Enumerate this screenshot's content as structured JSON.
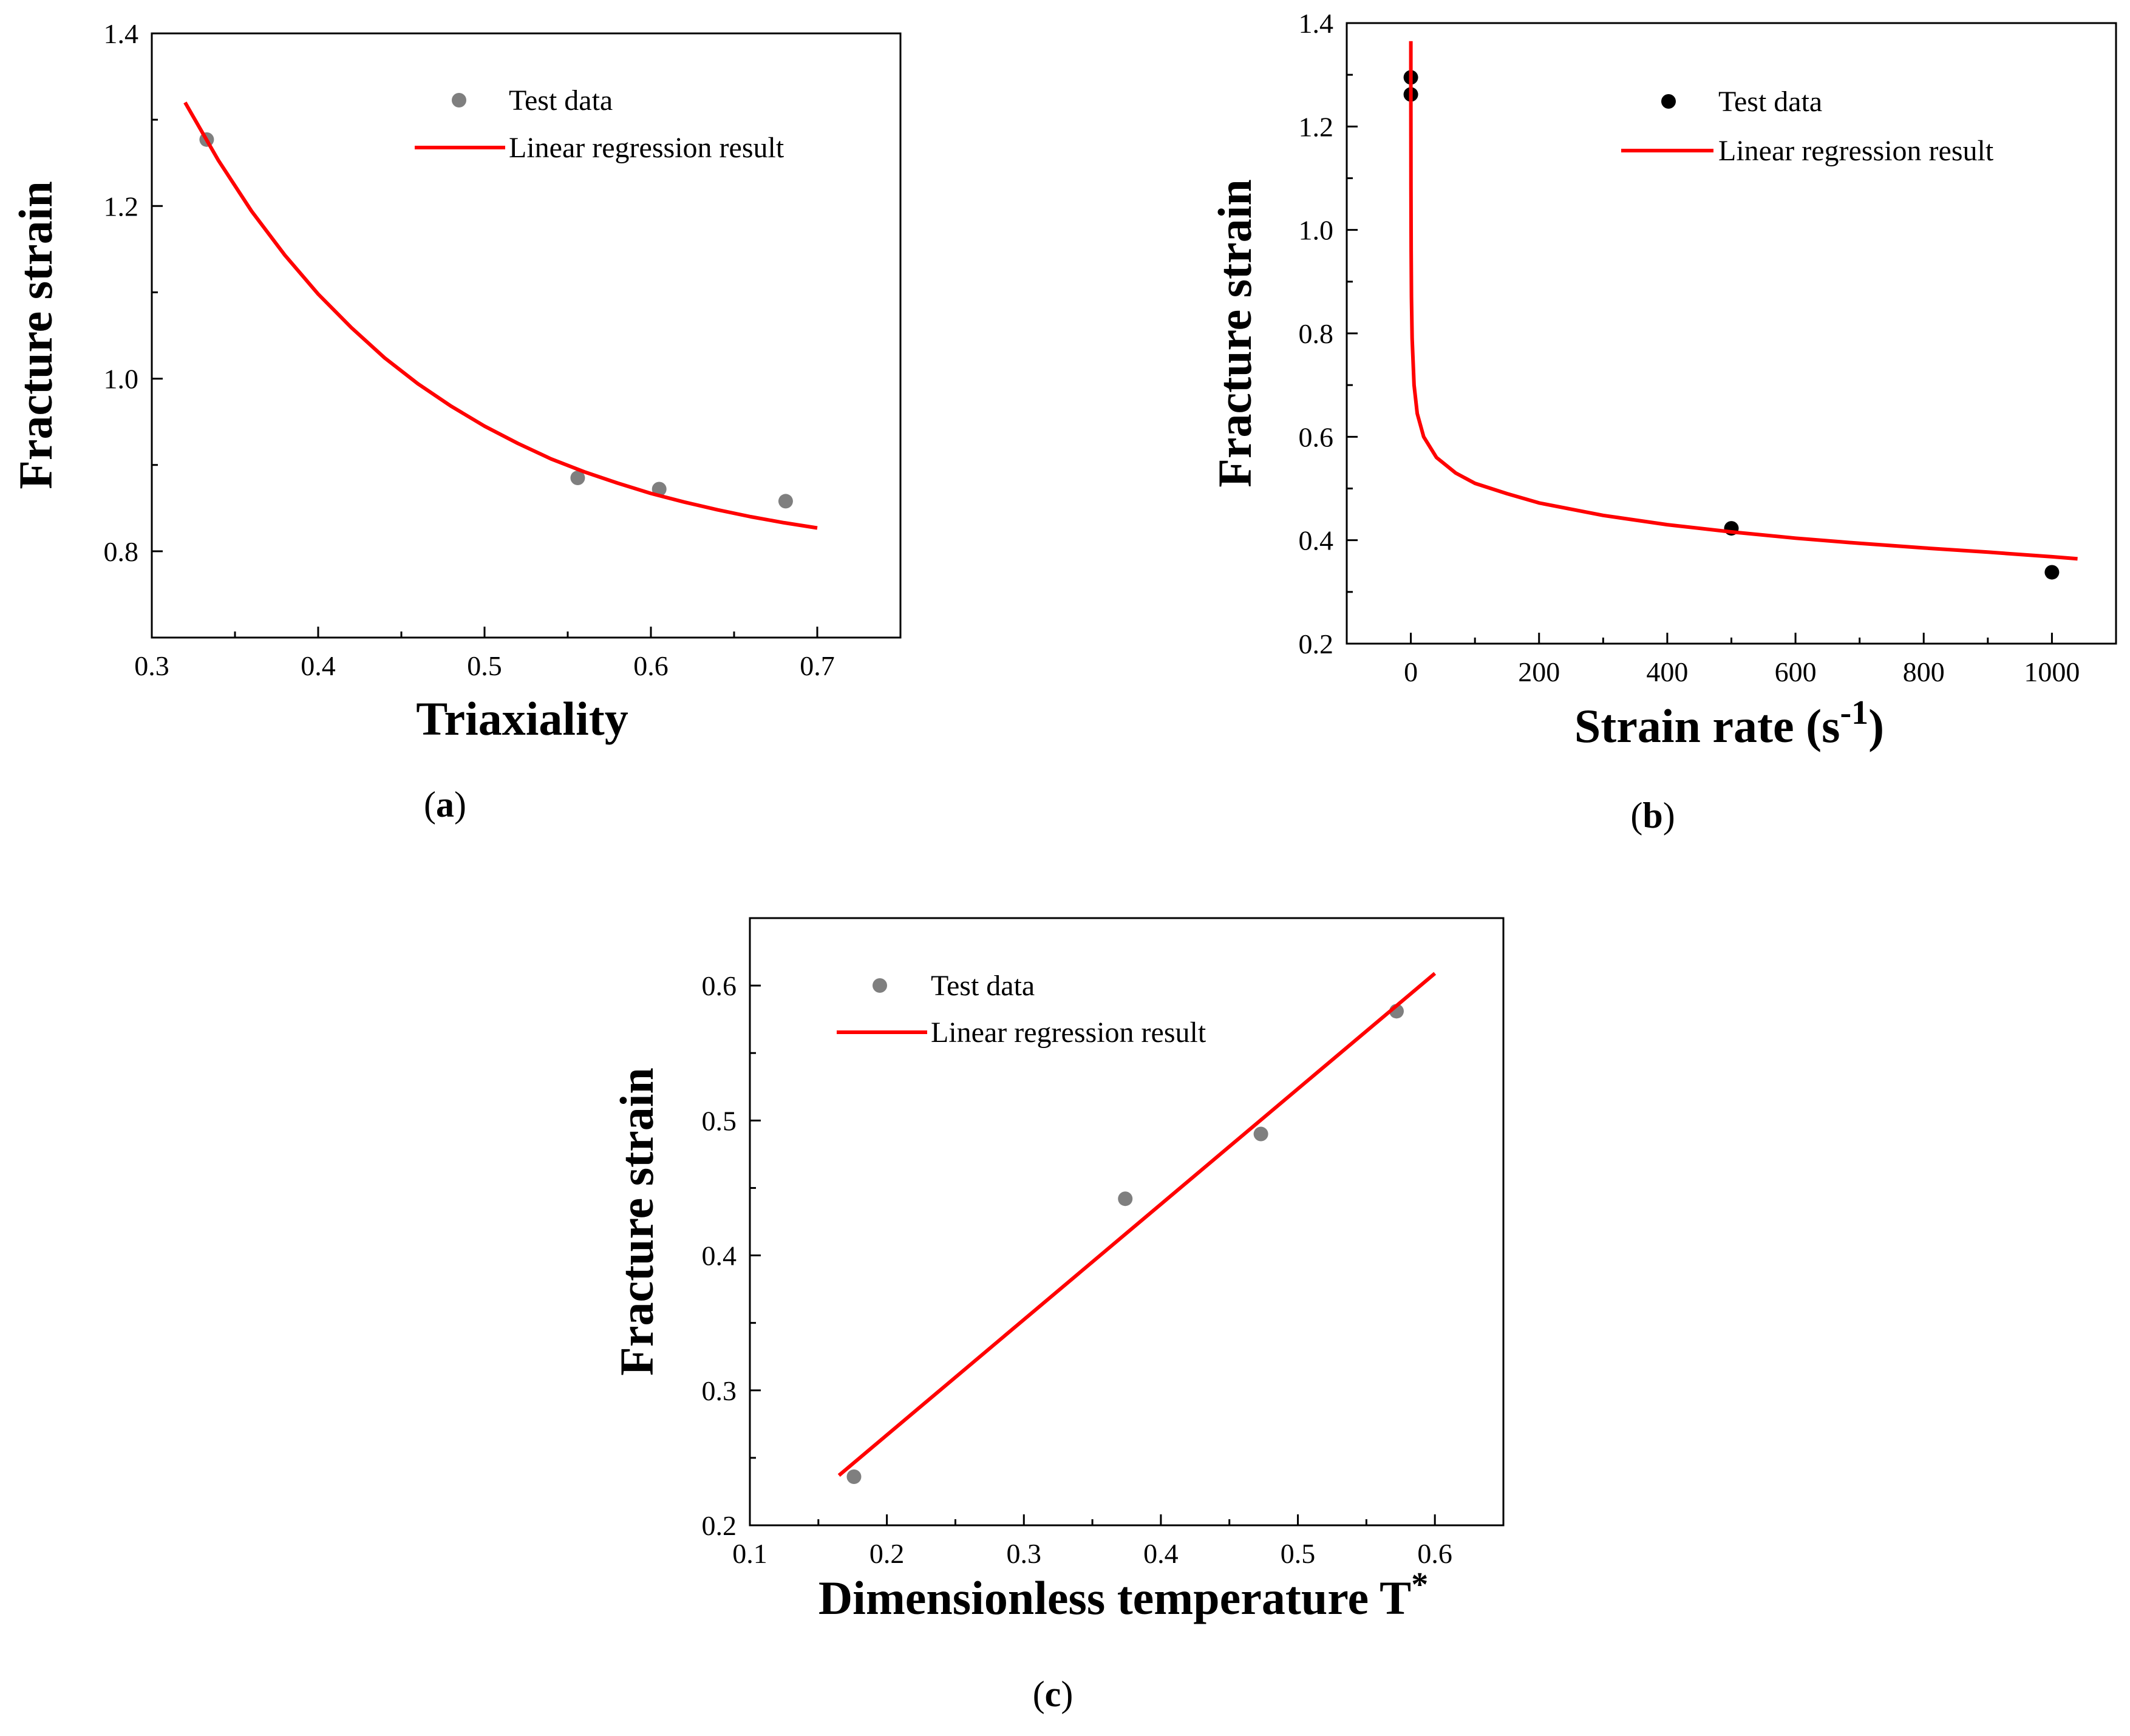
{
  "chart_data": [
    {
      "panel": "a",
      "caption": "(a)",
      "caption_letter": "a",
      "type": "scatter",
      "xlabel": "Triaxiality",
      "ylabel": "Fracture strain",
      "xlim": [
        0.3,
        0.75
      ],
      "ylim": [
        0.7,
        1.4
      ],
      "xticks": [
        0.3,
        0.4,
        0.5,
        0.6,
        0.7
      ],
      "xtick_labels": [
        "0.3",
        "0.4",
        "0.5",
        "0.6",
        "0.7"
      ],
      "yticks": [
        0.8,
        1.0,
        1.2,
        1.4
      ],
      "ytick_labels": [
        "0.8",
        "1.0",
        "1.2",
        "1.4"
      ],
      "series": [
        {
          "name": "Test data",
          "kind": "points",
          "color": "#7f7f7f",
          "x": [
            0.333,
            0.556,
            0.605,
            0.681
          ],
          "y": [
            1.277,
            0.885,
            0.872,
            0.858
          ]
        },
        {
          "name": "Linear regression result",
          "kind": "line",
          "color": "#ff0000",
          "x": [
            0.32,
            0.34,
            0.36,
            0.38,
            0.4,
            0.42,
            0.44,
            0.46,
            0.48,
            0.5,
            0.52,
            0.54,
            0.56,
            0.58,
            0.6,
            0.62,
            0.64,
            0.66,
            0.68,
            0.7
          ],
          "y": [
            1.32,
            1.253,
            1.194,
            1.143,
            1.098,
            1.059,
            1.024,
            0.994,
            0.968,
            0.945,
            0.925,
            0.907,
            0.892,
            0.879,
            0.867,
            0.857,
            0.848,
            0.84,
            0.833,
            0.827
          ]
        }
      ]
    },
    {
      "panel": "b",
      "caption": "(b)",
      "caption_letter": "b",
      "type": "scatter",
      "xlabel": "Strain rate (s",
      "xlabel_sup": "-1",
      "xlabel_end": ")",
      "ylabel": "Fracture strain",
      "xlim": [
        -100,
        1100
      ],
      "ylim": [
        0.2,
        1.4
      ],
      "xticks": [
        0,
        200,
        400,
        600,
        800,
        1000
      ],
      "xtick_labels": [
        "0",
        "200",
        "400",
        "600",
        "800",
        "1000"
      ],
      "yticks": [
        0.2,
        0.4,
        0.6,
        0.8,
        1.0,
        1.2,
        1.4
      ],
      "ytick_labels": [
        "0.2",
        "0.4",
        "0.6",
        "0.8",
        "1.0",
        "1.2",
        "1.4"
      ],
      "series": [
        {
          "name": "Test data",
          "kind": "points",
          "color": "#000000",
          "x": [
            0,
            0,
            500,
            1000
          ],
          "y": [
            1.295,
            1.262,
            0.423,
            0.338
          ]
        },
        {
          "name": "Linear regression result",
          "kind": "line",
          "color": "#ff0000",
          "x": [
            0.02,
            0.05,
            0.1,
            0.2,
            0.5,
            1,
            2,
            5,
            10,
            20,
            40,
            70,
            100,
            150,
            200,
            300,
            400,
            500,
            600,
            700,
            800,
            900,
            1000,
            1040
          ],
          "y": [
            1.365,
            1.26,
            1.18,
            1.08,
            0.96,
            0.87,
            0.79,
            0.7,
            0.645,
            0.6,
            0.56,
            0.53,
            0.51,
            0.49,
            0.472,
            0.448,
            0.43,
            0.416,
            0.404,
            0.394,
            0.385,
            0.377,
            0.368,
            0.364
          ]
        }
      ]
    },
    {
      "panel": "c",
      "caption": "(c)",
      "caption_letter": "c",
      "type": "scatter",
      "xlabel": "Dimensionless temperature T",
      "xlabel_sup": "*",
      "xlabel_end": "",
      "ylabel": "Fracture strain",
      "xlim": [
        0.1,
        0.65
      ],
      "ylim": [
        0.2,
        0.65
      ],
      "xticks": [
        0.1,
        0.2,
        0.3,
        0.4,
        0.5,
        0.6
      ],
      "xtick_labels": [
        "0.1",
        "0.2",
        "0.3",
        "0.4",
        "0.5",
        "0.6"
      ],
      "yticks": [
        0.2,
        0.3,
        0.4,
        0.5,
        0.6
      ],
      "ytick_labels": [
        "0.2",
        "0.3",
        "0.4",
        "0.5",
        "0.6"
      ],
      "series": [
        {
          "name": "Test data",
          "kind": "points",
          "color": "#7f7f7f",
          "x": [
            0.176,
            0.374,
            0.473,
            0.572
          ],
          "y": [
            0.236,
            0.442,
            0.49,
            0.581
          ]
        },
        {
          "name": "Linear regression result",
          "kind": "line",
          "color": "#ff0000",
          "x": [
            0.165,
            0.6
          ],
          "y": [
            0.237,
            0.609
          ]
        }
      ]
    }
  ]
}
